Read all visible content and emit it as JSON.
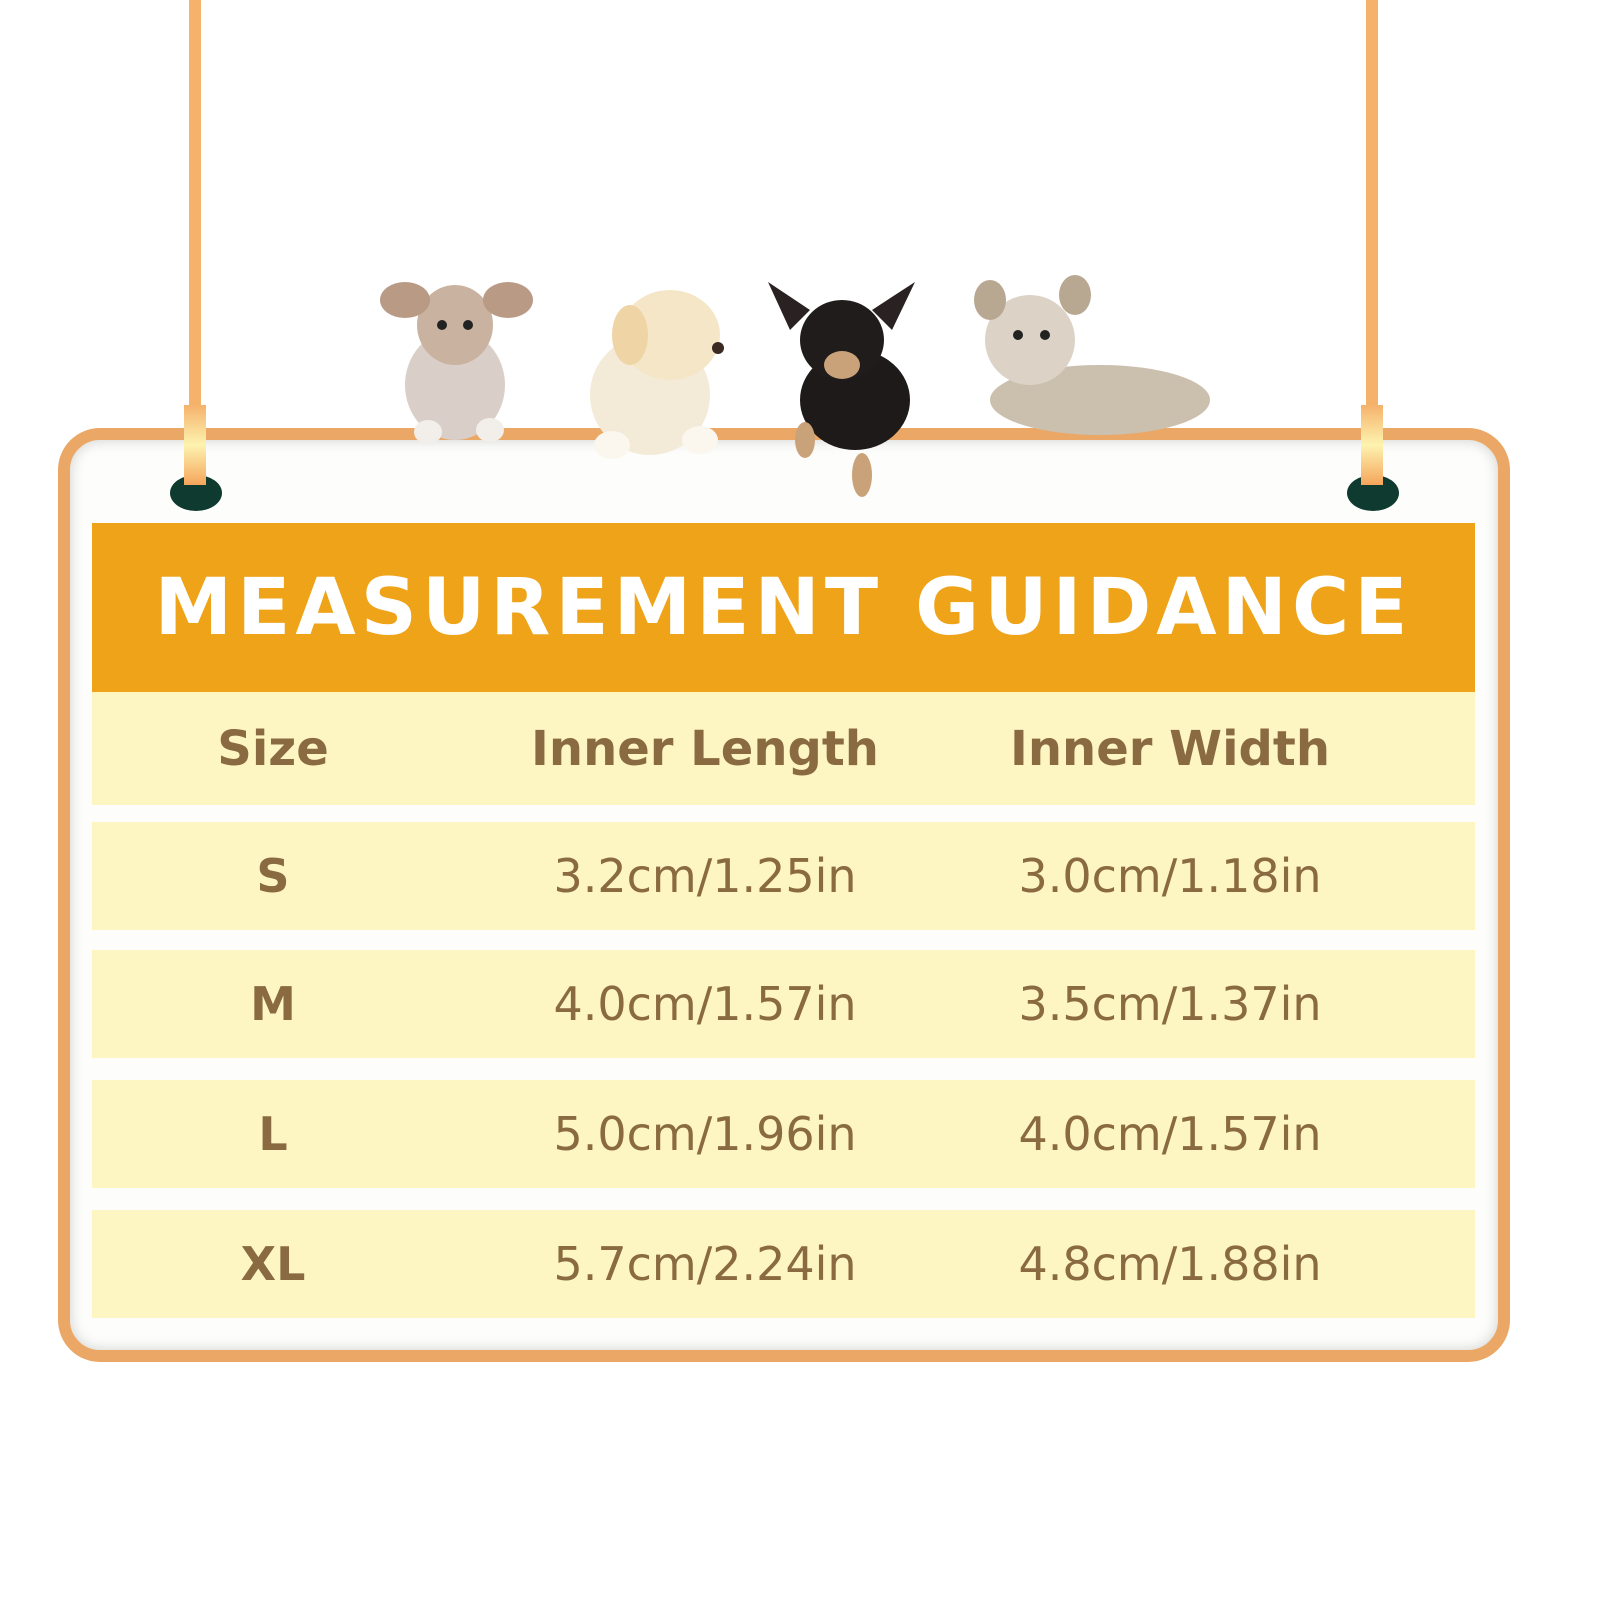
{
  "title": "MEASUREMENT GUIDANCE",
  "table": {
    "headers": [
      "Size",
      "Inner Length",
      "Inner Width"
    ],
    "rows": [
      {
        "size": "S",
        "length": "3.2cm/1.25in",
        "width": "3.0cm/1.18in"
      },
      {
        "size": "M",
        "length": "4.0cm/1.57in",
        "width": "3.5cm/1.37in"
      },
      {
        "size": "L",
        "length": "5.0cm/1.96in",
        "width": "4.0cm/1.57in"
      },
      {
        "size": "XL",
        "length": "5.7cm/2.24in",
        "width": "4.8cm/1.88in"
      }
    ]
  },
  "colors": {
    "header": "#eea318",
    "frame": "#eba765",
    "row": "#fdf6c3",
    "text": "#8a6a40",
    "grommet": "#0f3a30"
  },
  "illustration": [
    "dog-chihuahua-tan",
    "dog-labrador-puppy",
    "dog-chihuahua-black",
    "dog-yorkie"
  ]
}
